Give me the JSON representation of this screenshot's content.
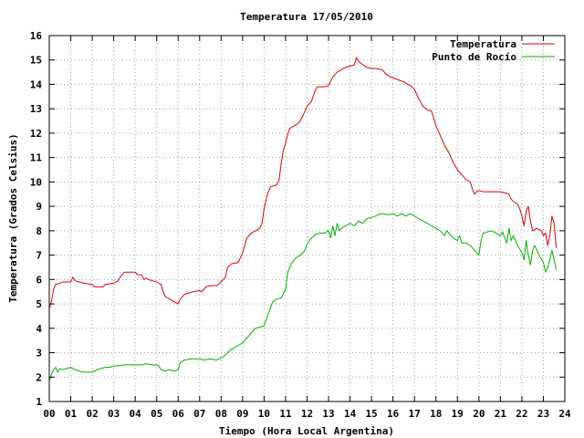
{
  "chart_data": {
    "type": "line",
    "title": "Temperatura 17/05/2010",
    "xlabel": "Tiempo (Hora Local Argentina)",
    "ylabel": "Temperatura (Grados Celsius)",
    "xlim": [
      0,
      24
    ],
    "ylim": [
      1,
      16
    ],
    "x_ticks": [
      "00",
      "01",
      "02",
      "03",
      "04",
      "05",
      "06",
      "07",
      "08",
      "09",
      "10",
      "11",
      "12",
      "13",
      "14",
      "15",
      "16",
      "17",
      "18",
      "19",
      "20",
      "21",
      "22",
      "23",
      "24"
    ],
    "y_ticks": [
      "1",
      "2",
      "3",
      "4",
      "5",
      "6",
      "7",
      "8",
      "9",
      "10",
      "11",
      "12",
      "13",
      "14",
      "15",
      "16"
    ],
    "grid": true,
    "legend_position": "top-right",
    "series": [
      {
        "name": "Temperatura",
        "color": "#e00000",
        "points": [
          [
            0.0,
            4.8
          ],
          [
            0.1,
            5.1
          ],
          [
            0.2,
            5.6
          ],
          [
            0.3,
            5.8
          ],
          [
            0.5,
            5.85
          ],
          [
            0.6,
            5.9
          ],
          [
            1.0,
            5.9
          ],
          [
            1.1,
            6.1
          ],
          [
            1.2,
            5.95
          ],
          [
            1.4,
            5.9
          ],
          [
            1.6,
            5.85
          ],
          [
            2.0,
            5.8
          ],
          [
            2.1,
            5.7
          ],
          [
            2.5,
            5.7
          ],
          [
            2.6,
            5.8
          ],
          [
            3.0,
            5.85
          ],
          [
            3.2,
            5.95
          ],
          [
            3.3,
            6.1
          ],
          [
            3.5,
            6.3
          ],
          [
            4.0,
            6.3
          ],
          [
            4.1,
            6.2
          ],
          [
            4.3,
            6.2
          ],
          [
            4.4,
            6.0
          ],
          [
            4.5,
            6.05
          ],
          [
            4.6,
            6.0
          ],
          [
            4.8,
            5.95
          ],
          [
            5.0,
            5.9
          ],
          [
            5.2,
            5.8
          ],
          [
            5.3,
            5.5
          ],
          [
            5.4,
            5.3
          ],
          [
            5.6,
            5.2
          ],
          [
            5.8,
            5.1
          ],
          [
            5.9,
            5.05
          ],
          [
            6.0,
            5.0
          ],
          [
            6.1,
            5.2
          ],
          [
            6.3,
            5.4
          ],
          [
            6.5,
            5.45
          ],
          [
            6.7,
            5.5
          ],
          [
            7.0,
            5.55
          ],
          [
            7.1,
            5.5
          ],
          [
            7.2,
            5.6
          ],
          [
            7.3,
            5.7
          ],
          [
            7.5,
            5.75
          ],
          [
            7.8,
            5.75
          ],
          [
            8.0,
            5.9
          ],
          [
            8.2,
            6.1
          ],
          [
            8.3,
            6.5
          ],
          [
            8.5,
            6.65
          ],
          [
            8.8,
            6.7
          ],
          [
            9.0,
            7.1
          ],
          [
            9.1,
            7.4
          ],
          [
            9.2,
            7.7
          ],
          [
            9.4,
            7.9
          ],
          [
            9.6,
            8.0
          ],
          [
            9.8,
            8.1
          ],
          [
            9.9,
            8.3
          ],
          [
            10.0,
            8.9
          ],
          [
            10.1,
            9.3
          ],
          [
            10.2,
            9.6
          ],
          [
            10.3,
            9.8
          ],
          [
            10.5,
            9.85
          ],
          [
            10.6,
            9.9
          ],
          [
            10.7,
            10.1
          ],
          [
            10.8,
            10.8
          ],
          [
            10.9,
            11.3
          ],
          [
            11.0,
            11.6
          ],
          [
            11.1,
            11.95
          ],
          [
            11.2,
            12.2
          ],
          [
            11.4,
            12.3
          ],
          [
            11.6,
            12.4
          ],
          [
            11.8,
            12.7
          ],
          [
            12.0,
            13.1
          ],
          [
            12.2,
            13.3
          ],
          [
            12.4,
            13.8
          ],
          [
            12.5,
            13.9
          ],
          [
            12.8,
            13.9
          ],
          [
            13.0,
            13.95
          ],
          [
            13.2,
            14.3
          ],
          [
            13.4,
            14.5
          ],
          [
            13.6,
            14.6
          ],
          [
            13.8,
            14.7
          ],
          [
            14.0,
            14.75
          ],
          [
            14.2,
            14.8
          ],
          [
            14.3,
            15.1
          ],
          [
            14.4,
            14.95
          ],
          [
            14.6,
            14.8
          ],
          [
            14.8,
            14.7
          ],
          [
            15.0,
            14.65
          ],
          [
            15.2,
            14.65
          ],
          [
            15.5,
            14.6
          ],
          [
            15.7,
            14.4
          ],
          [
            15.9,
            14.3
          ],
          [
            16.2,
            14.2
          ],
          [
            16.5,
            14.1
          ],
          [
            16.8,
            13.95
          ],
          [
            17.0,
            13.8
          ],
          [
            17.2,
            13.4
          ],
          [
            17.4,
            13.1
          ],
          [
            17.6,
            12.95
          ],
          [
            17.8,
            12.9
          ],
          [
            17.9,
            12.6
          ],
          [
            18.0,
            12.3
          ],
          [
            18.2,
            11.9
          ],
          [
            18.4,
            11.5
          ],
          [
            18.6,
            11.2
          ],
          [
            18.8,
            10.8
          ],
          [
            19.0,
            10.5
          ],
          [
            19.2,
            10.3
          ],
          [
            19.4,
            10.1
          ],
          [
            19.6,
            10.0
          ],
          [
            19.7,
            9.7
          ],
          [
            19.8,
            9.5
          ],
          [
            19.9,
            9.6
          ],
          [
            20.0,
            9.65
          ],
          [
            20.2,
            9.6
          ],
          [
            20.5,
            9.6
          ],
          [
            20.8,
            9.6
          ],
          [
            21.0,
            9.6
          ],
          [
            21.2,
            9.55
          ],
          [
            21.4,
            9.5
          ],
          [
            21.5,
            9.3
          ],
          [
            21.6,
            9.2
          ],
          [
            21.8,
            9.1
          ],
          [
            21.9,
            8.9
          ],
          [
            22.0,
            8.6
          ],
          [
            22.1,
            8.2
          ],
          [
            22.2,
            8.8
          ],
          [
            22.3,
            9.0
          ],
          [
            22.4,
            8.4
          ],
          [
            22.5,
            8.0
          ],
          [
            22.7,
            8.1
          ],
          [
            22.9,
            8.0
          ],
          [
            23.0,
            7.8
          ],
          [
            23.1,
            7.9
          ],
          [
            23.2,
            7.4
          ],
          [
            23.3,
            7.8
          ],
          [
            23.4,
            8.6
          ],
          [
            23.5,
            8.3
          ],
          [
            23.6,
            7.3
          ]
        ]
      },
      {
        "name": "Punto de Rocío",
        "color": "#00b000",
        "points": [
          [
            0.0,
            1.85
          ],
          [
            0.1,
            2.1
          ],
          [
            0.2,
            2.3
          ],
          [
            0.3,
            2.4
          ],
          [
            0.4,
            2.2
          ],
          [
            0.5,
            2.35
          ],
          [
            0.6,
            2.3
          ],
          [
            0.8,
            2.35
          ],
          [
            1.0,
            2.4
          ],
          [
            1.2,
            2.3
          ],
          [
            1.4,
            2.25
          ],
          [
            1.6,
            2.2
          ],
          [
            2.0,
            2.2
          ],
          [
            2.2,
            2.3
          ],
          [
            2.4,
            2.35
          ],
          [
            2.6,
            2.4
          ],
          [
            2.8,
            2.4
          ],
          [
            3.0,
            2.45
          ],
          [
            3.5,
            2.5
          ],
          [
            4.0,
            2.5
          ],
          [
            4.3,
            2.5
          ],
          [
            4.5,
            2.55
          ],
          [
            4.8,
            2.5
          ],
          [
            5.0,
            2.5
          ],
          [
            5.1,
            2.45
          ],
          [
            5.2,
            2.3
          ],
          [
            5.4,
            2.25
          ],
          [
            5.6,
            2.3
          ],
          [
            5.8,
            2.25
          ],
          [
            6.0,
            2.3
          ],
          [
            6.1,
            2.6
          ],
          [
            6.3,
            2.7
          ],
          [
            6.6,
            2.75
          ],
          [
            7.0,
            2.75
          ],
          [
            7.2,
            2.7
          ],
          [
            7.5,
            2.75
          ],
          [
            7.8,
            2.7
          ],
          [
            8.0,
            2.8
          ],
          [
            8.2,
            2.9
          ],
          [
            8.4,
            3.1
          ],
          [
            8.6,
            3.2
          ],
          [
            8.8,
            3.3
          ],
          [
            9.0,
            3.4
          ],
          [
            9.2,
            3.6
          ],
          [
            9.4,
            3.8
          ],
          [
            9.6,
            4.0
          ],
          [
            9.8,
            4.05
          ],
          [
            10.0,
            4.1
          ],
          [
            10.2,
            4.6
          ],
          [
            10.4,
            5.1
          ],
          [
            10.6,
            5.2
          ],
          [
            10.8,
            5.25
          ],
          [
            11.0,
            5.6
          ],
          [
            11.1,
            6.3
          ],
          [
            11.3,
            6.7
          ],
          [
            11.5,
            6.9
          ],
          [
            11.7,
            7.0
          ],
          [
            11.9,
            7.2
          ],
          [
            12.0,
            7.45
          ],
          [
            12.2,
            7.7
          ],
          [
            12.4,
            7.85
          ],
          [
            12.6,
            7.9
          ],
          [
            12.8,
            7.9
          ],
          [
            13.0,
            8.0
          ],
          [
            13.1,
            7.7
          ],
          [
            13.2,
            8.2
          ],
          [
            13.3,
            7.8
          ],
          [
            13.4,
            8.3
          ],
          [
            13.5,
            8.0
          ],
          [
            13.6,
            8.1
          ],
          [
            13.8,
            8.2
          ],
          [
            14.0,
            8.3
          ],
          [
            14.2,
            8.2
          ],
          [
            14.4,
            8.4
          ],
          [
            14.6,
            8.3
          ],
          [
            14.8,
            8.5
          ],
          [
            15.0,
            8.55
          ],
          [
            15.2,
            8.6
          ],
          [
            15.4,
            8.7
          ],
          [
            15.6,
            8.7
          ],
          [
            15.8,
            8.65
          ],
          [
            16.0,
            8.7
          ],
          [
            16.2,
            8.6
          ],
          [
            16.4,
            8.7
          ],
          [
            16.6,
            8.6
          ],
          [
            16.8,
            8.7
          ],
          [
            17.0,
            8.6
          ],
          [
            17.2,
            8.5
          ],
          [
            17.4,
            8.4
          ],
          [
            17.6,
            8.3
          ],
          [
            17.8,
            8.2
          ],
          [
            18.0,
            8.1
          ],
          [
            18.2,
            8.0
          ],
          [
            18.4,
            7.8
          ],
          [
            18.5,
            8.0
          ],
          [
            18.6,
            7.9
          ],
          [
            18.8,
            7.7
          ],
          [
            19.0,
            7.6
          ],
          [
            19.1,
            7.8
          ],
          [
            19.2,
            7.5
          ],
          [
            19.4,
            7.5
          ],
          [
            19.6,
            7.4
          ],
          [
            19.8,
            7.2
          ],
          [
            20.0,
            7.0
          ],
          [
            20.1,
            7.6
          ],
          [
            20.2,
            7.9
          ],
          [
            20.4,
            7.95
          ],
          [
            20.6,
            8.0
          ],
          [
            20.8,
            7.9
          ],
          [
            21.0,
            7.8
          ],
          [
            21.1,
            7.95
          ],
          [
            21.3,
            7.5
          ],
          [
            21.4,
            8.1
          ],
          [
            21.5,
            7.6
          ],
          [
            21.6,
            7.8
          ],
          [
            21.8,
            7.4
          ],
          [
            22.0,
            7.1
          ],
          [
            22.1,
            6.8
          ],
          [
            22.2,
            7.6
          ],
          [
            22.3,
            7.0
          ],
          [
            22.4,
            6.6
          ],
          [
            22.5,
            7.2
          ],
          [
            22.6,
            7.4
          ],
          [
            22.8,
            7.0
          ],
          [
            23.0,
            6.7
          ],
          [
            23.1,
            6.3
          ],
          [
            23.2,
            6.5
          ],
          [
            23.3,
            6.8
          ],
          [
            23.4,
            7.2
          ],
          [
            23.5,
            6.8
          ],
          [
            23.6,
            6.4
          ]
        ]
      }
    ]
  }
}
